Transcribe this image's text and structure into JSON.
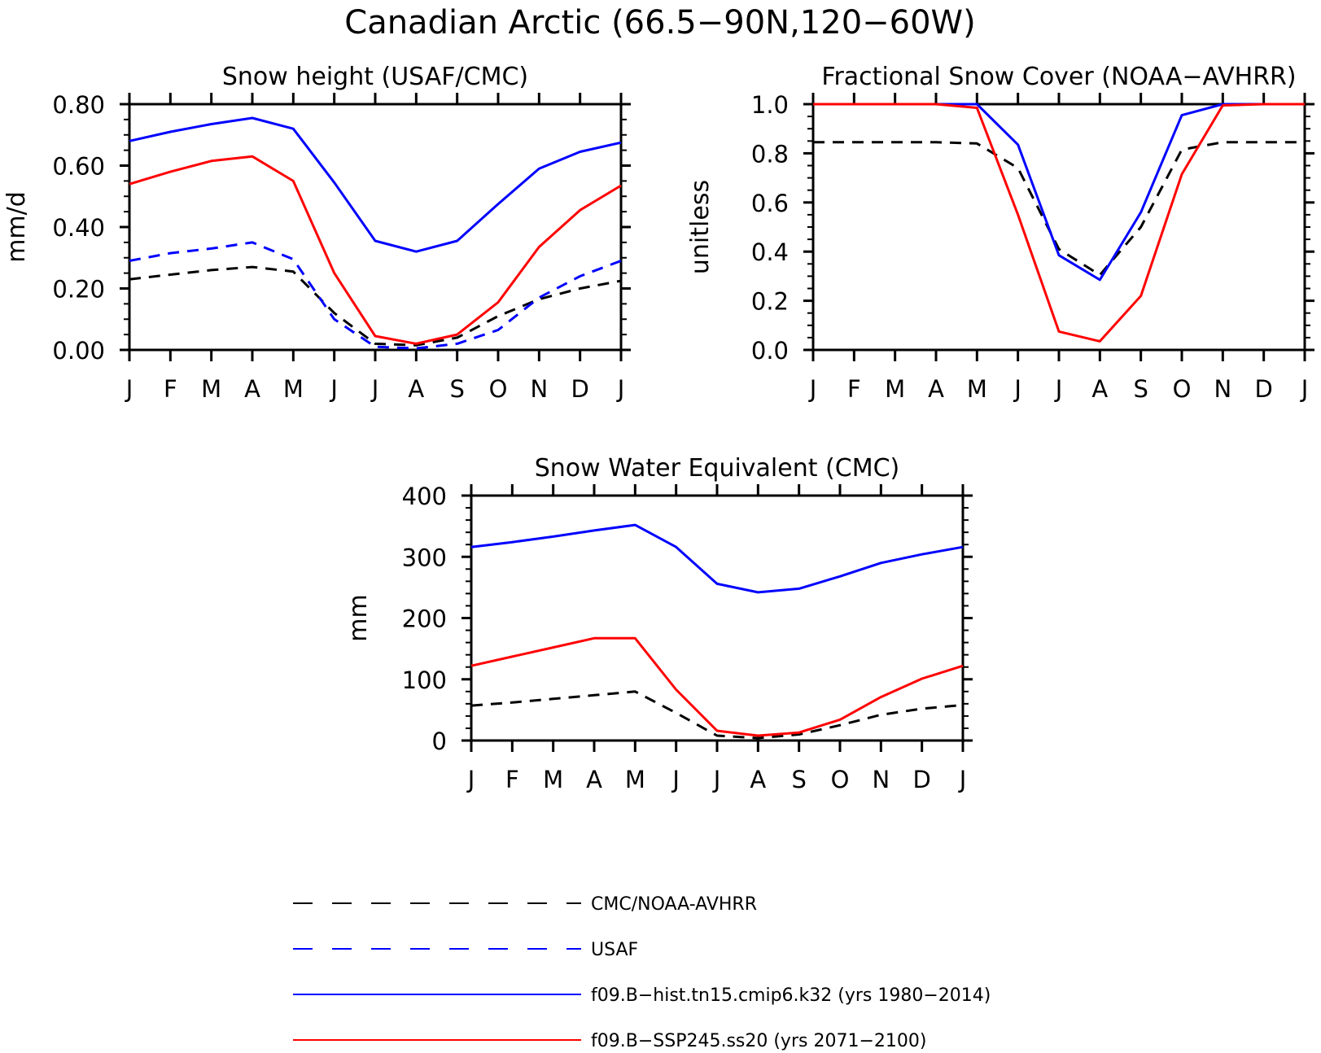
{
  "title": "Canadian Arctic (66.5−90N,120−60W)",
  "months": [
    "J",
    "F",
    "M",
    "A",
    "M",
    "J",
    "J",
    "A",
    "S",
    "O",
    "N",
    "D",
    "J"
  ],
  "legend": [
    {
      "label": "CMC/NOAA-AVHRR",
      "color": "#000000",
      "dash": true
    },
    {
      "label": "USAF",
      "color": "#0000ff",
      "dash": true
    },
    {
      "label": "f09.B−hist.tn15.cmip6.k32 (yrs 1980−2014)",
      "color": "#0000ff",
      "dash": false
    },
    {
      "label": "f09.B−SSP245.ss20 (yrs 2071−2100)",
      "color": "#ff0000",
      "dash": false
    }
  ],
  "chart_data": [
    {
      "type": "line",
      "title": "Snow height (USAF/CMC)",
      "ylabel": "mm/d",
      "xlabel": "",
      "ylim": [
        0,
        0.8
      ],
      "yticks": [
        0,
        0.2,
        0.4,
        0.6,
        0.8
      ],
      "ytick_labels": [
        "0.00",
        "0.20",
        "0.40",
        "0.60",
        "0.80"
      ],
      "x": [
        "J",
        "F",
        "M",
        "A",
        "M",
        "J",
        "J",
        "A",
        "S",
        "O",
        "N",
        "D",
        "J"
      ],
      "series": [
        {
          "name": "CMC/NOAA-AVHRR",
          "color": "#000000",
          "dash": true,
          "values": [
            0.23,
            0.245,
            0.26,
            0.27,
            0.255,
            0.12,
            0.02,
            0.015,
            0.04,
            0.11,
            0.165,
            0.2,
            0.225
          ]
        },
        {
          "name": "USAF",
          "color": "#0000ff",
          "dash": true,
          "values": [
            0.29,
            0.315,
            0.33,
            0.35,
            0.295,
            0.1,
            0.01,
            0.005,
            0.02,
            0.065,
            0.17,
            0.24,
            0.29
          ]
        },
        {
          "name": "f09.B−hist.tn15.cmip6.k32 (yrs 1980−2014)",
          "color": "#0000ff",
          "dash": false,
          "values": [
            0.68,
            0.71,
            0.735,
            0.755,
            0.72,
            0.545,
            0.355,
            0.32,
            0.355,
            0.475,
            0.59,
            0.645,
            0.675
          ]
        },
        {
          "name": "f09.B−SSP245.ss20 (yrs 2071−2100)",
          "color": "#ff0000",
          "dash": false,
          "values": [
            0.54,
            0.58,
            0.615,
            0.63,
            0.55,
            0.25,
            0.045,
            0.02,
            0.05,
            0.155,
            0.335,
            0.455,
            0.535
          ]
        }
      ]
    },
    {
      "type": "line",
      "title": "Fractional Snow Cover (NOAA−AVHRR)",
      "ylabel": "unitless",
      "xlabel": "",
      "ylim": [
        0,
        1.0
      ],
      "yticks": [
        0,
        0.2,
        0.4,
        0.6,
        0.8,
        1.0
      ],
      "ytick_labels": [
        "0.0",
        "0.2",
        "0.4",
        "0.6",
        "0.8",
        "1.0"
      ],
      "x": [
        "J",
        "F",
        "M",
        "A",
        "M",
        "J",
        "J",
        "A",
        "S",
        "O",
        "N",
        "D",
        "J"
      ],
      "series": [
        {
          "name": "CMC/NOAA-AVHRR",
          "color": "#000000",
          "dash": true,
          "values": [
            0.845,
            0.845,
            0.845,
            0.845,
            0.84,
            0.74,
            0.41,
            0.305,
            0.5,
            0.815,
            0.845,
            0.845,
            0.845
          ]
        },
        {
          "name": "f09.B−hist.tn15.cmip6.k32 (yrs 1980−2014)",
          "color": "#0000ff",
          "dash": false,
          "values": [
            1.0,
            1.0,
            1.0,
            1.0,
            1.0,
            0.835,
            0.385,
            0.285,
            0.56,
            0.955,
            1.0,
            1.0,
            1.0
          ]
        },
        {
          "name": "f09.B−SSP245.ss20 (yrs 2071−2100)",
          "color": "#ff0000",
          "dash": false,
          "values": [
            1.0,
            1.0,
            1.0,
            1.0,
            0.985,
            0.55,
            0.075,
            0.035,
            0.22,
            0.715,
            0.995,
            1.0,
            1.0
          ]
        }
      ]
    },
    {
      "type": "line",
      "title": "Snow Water Equivalent (CMC)",
      "ylabel": "mm",
      "xlabel": "",
      "ylim": [
        0,
        400
      ],
      "yticks": [
        0,
        100,
        200,
        300,
        400
      ],
      "ytick_labels": [
        "0",
        "100",
        "200",
        "300",
        "400"
      ],
      "x": [
        "J",
        "F",
        "M",
        "A",
        "M",
        "J",
        "J",
        "A",
        "S",
        "O",
        "N",
        "D",
        "J"
      ],
      "series": [
        {
          "name": "CMC/NOAA-AVHRR",
          "color": "#000000",
          "dash": true,
          "values": [
            57,
            62,
            68,
            74,
            80,
            45,
            8,
            4,
            10,
            25,
            42,
            52,
            58
          ]
        },
        {
          "name": "f09.B−hist.tn15.cmip6.k32 (yrs 1980−2014)",
          "color": "#0000ff",
          "dash": false,
          "values": [
            316,
            324,
            333,
            343,
            352,
            316,
            256,
            242,
            248,
            268,
            290,
            304,
            316
          ]
        },
        {
          "name": "f09.B−SSP245.ss20 (yrs 2071−2100)",
          "color": "#ff0000",
          "dash": false,
          "values": [
            122,
            137,
            152,
            167,
            167,
            83,
            16,
            8,
            13,
            34,
            71,
            101,
            122
          ]
        }
      ]
    }
  ]
}
